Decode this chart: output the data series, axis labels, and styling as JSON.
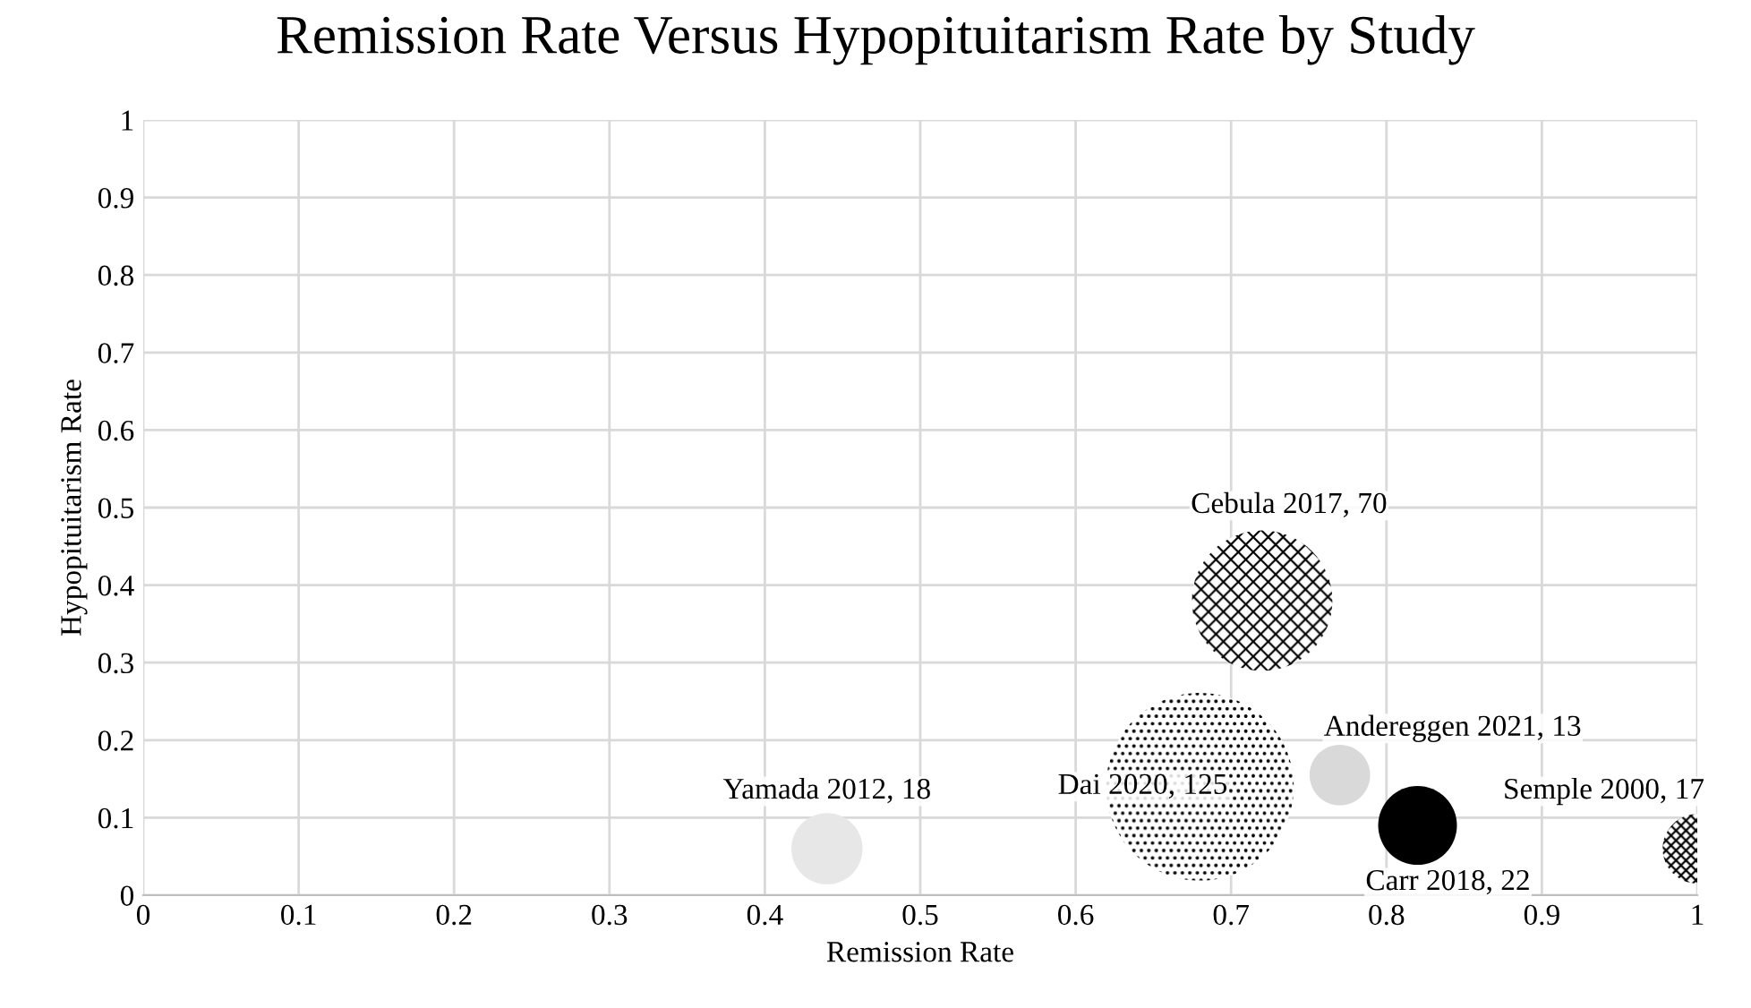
{
  "chart_data": {
    "type": "bubble",
    "title": "Remission Rate Versus Hypopituitarism Rate by Study",
    "xlabel": "Remission Rate",
    "ylabel": "Hypopituitarism Rate",
    "x": [
      0.44,
      0.72,
      0.68,
      0.77,
      0.82,
      1.0
    ],
    "values": [
      0.06,
      0.38,
      0.14,
      0.155,
      0.09,
      0.06
    ],
    "sizes": [
      0.144,
      0.56,
      1,
      0.104,
      0.176,
      0.136
    ],
    "colors": [
      "#e7e7e7",
      "#000000",
      "#000000",
      "#d9d9d9",
      "#000000",
      "#000000"
    ],
    "annotations": [
      {
        "text": "Yamada 2012, 18",
        "x": 0.44,
        "y": 0.06
      },
      {
        "text": "Cebula 2017, 70",
        "x": 0.72,
        "y": 0.38
      },
      {
        "text": "Dai 2020, 125",
        "x": 0.68,
        "y": 0.14
      },
      {
        "text": "Andereggen 2021, 13",
        "x": 0.77,
        "y": 0.155
      },
      {
        "text": "Carr 2018, 22",
        "x": 0.82,
        "y": 0.09
      },
      {
        "text": "Semple 2000, 17",
        "x": 1.0,
        "y": 0.06
      }
    ],
    "xlim": [
      0,
      1
    ],
    "ylim": [
      0,
      1
    ],
    "xticks": [
      0,
      0.1,
      0.2,
      0.3,
      0.4,
      0.5,
      0.6,
      0.7,
      0.8,
      0.9,
      1
    ],
    "yticks": [
      0,
      0.1,
      0.2,
      0.3,
      0.4,
      0.5,
      0.6,
      0.7,
      0.8,
      0.9,
      1
    ],
    "grid": true
  }
}
